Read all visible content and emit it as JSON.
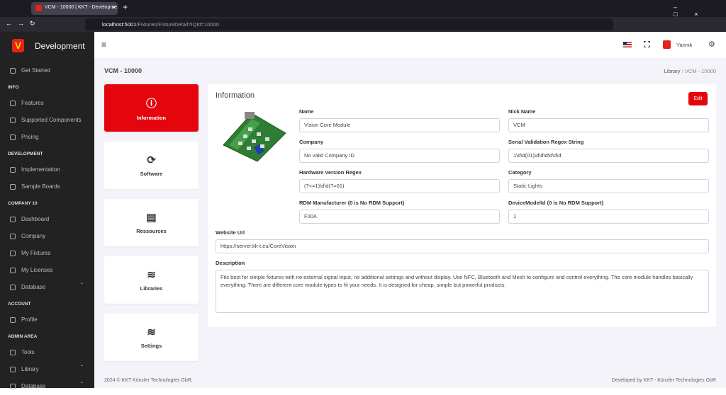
{
  "browser": {
    "tab_title": "VCM - 10000 | KKT - Developme",
    "url_host": "localhost:5001",
    "url_path": "/Fixtures/FixtureDetail?IQId=10000"
  },
  "sidebar": {
    "brand": "Development",
    "top": [
      {
        "label": "Get Started"
      }
    ],
    "sections": [
      {
        "heading": "INFO",
        "items": [
          {
            "label": "Features"
          },
          {
            "label": "Supported Components"
          },
          {
            "label": "Pricing"
          }
        ]
      },
      {
        "heading": "DEVELOPMENT",
        "items": [
          {
            "label": "Implementation"
          },
          {
            "label": "Sample Boards"
          }
        ]
      },
      {
        "heading": "COMPANY 10",
        "items": [
          {
            "label": "Dashboard"
          },
          {
            "label": "Company"
          },
          {
            "label": "My Fixtures"
          },
          {
            "label": "My Licenses"
          },
          {
            "label": "Database",
            "submenu": true
          }
        ]
      },
      {
        "heading": "ACCOUNT",
        "items": [
          {
            "label": "Profile"
          }
        ]
      },
      {
        "heading": "ADMIN AREA",
        "items": [
          {
            "label": "Tools"
          },
          {
            "label": "Library",
            "submenu": true
          },
          {
            "label": "Database",
            "submenu": true
          }
        ]
      }
    ]
  },
  "header": {
    "user": "Yannik"
  },
  "page": {
    "title": "VCM - 10000",
    "breadcrumb": [
      "Library",
      "VCM - 10000"
    ]
  },
  "nav_cards": [
    "Information",
    "Software",
    "Ressources",
    "Libraries",
    "Settings"
  ],
  "panel": {
    "title": "Information",
    "edit": "Edit",
    "fields": [
      {
        "label": "Name",
        "value": "Vision Core Module"
      },
      {
        "label": "Nick Name",
        "value": "VCM"
      },
      {
        "label": "Company",
        "value": "No valid Company ID"
      },
      {
        "label": "Serial Validation Regex String",
        "value": "1\\d\\d(01)\\d\\d\\d\\d\\d\\d"
      },
      {
        "label": "Hardware Version Regex",
        "value": "(?<=1)\\d\\d(?=01)"
      },
      {
        "label": "Category",
        "value": "Static Lights"
      },
      {
        "label": "RDM Manufacturer (0 is No RDM Support)",
        "value": "F00A"
      },
      {
        "label": "DeviceModelId (0 is No RDM Support)",
        "value": "1"
      }
    ],
    "website": {
      "label": "Website Url",
      "value": "https://server.kk-t.eu/CoreVision"
    },
    "description": {
      "label": "Description",
      "value": "Fits best for simple fixtures with no external signal input, no additional settings and without display. Use NFC, Bluetooth and Mesh to configure and control everything. The core module handles basically everything. There are different core module types to fit your needs. It is designed for cheap, simple but powerful products."
    }
  },
  "footer": {
    "left": "2024 © KKT Künzler Technologies GbR.",
    "right": "Developed by KKT - Künzler Technologies GbR"
  }
}
